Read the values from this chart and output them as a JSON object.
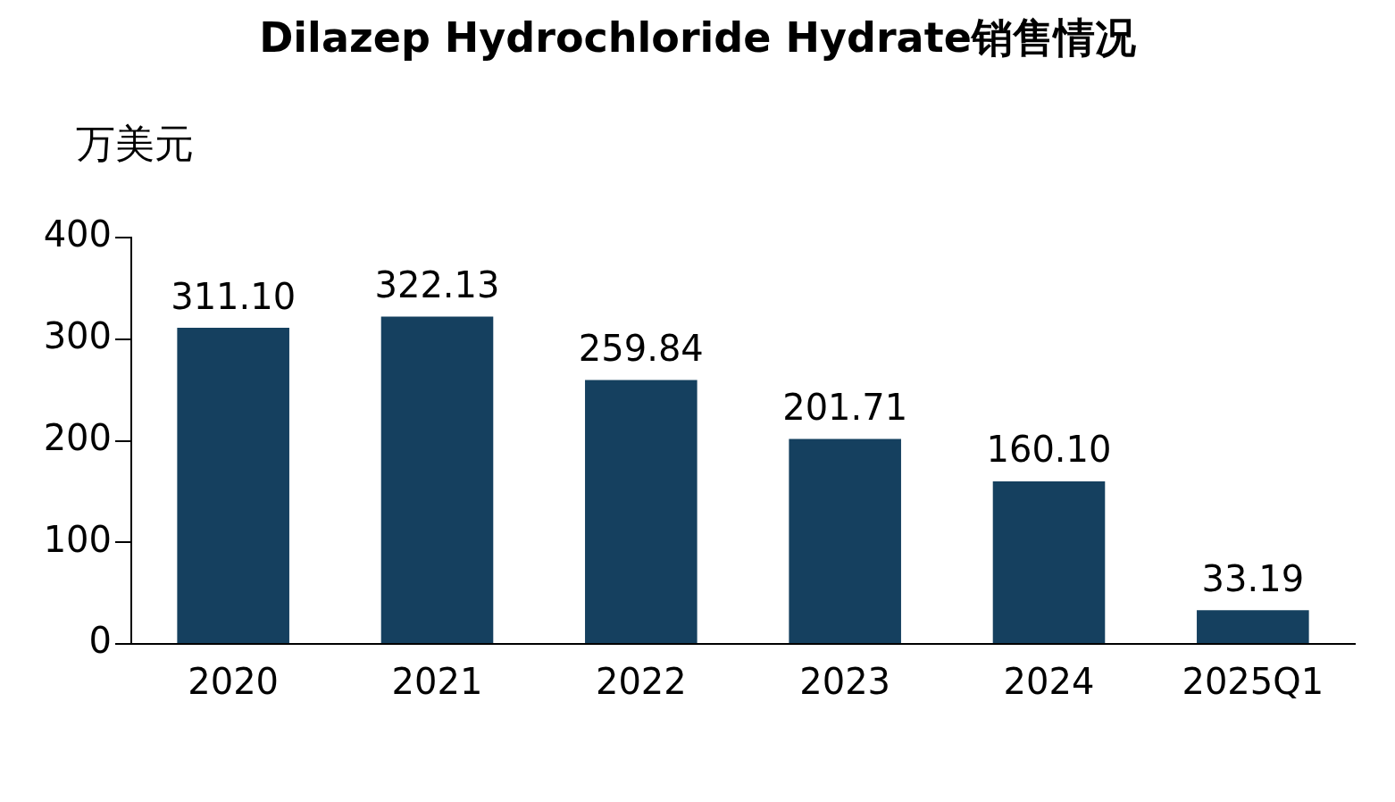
{
  "chart_data": {
    "type": "bar",
    "title": "Dilazep Hydrochloride Hydrate销售情况",
    "ylabel": "万美元",
    "categories": [
      "2020",
      "2021",
      "2022",
      "2023",
      "2024",
      "2025Q1"
    ],
    "values": [
      311.1,
      322.13,
      259.84,
      201.71,
      160.1,
      33.19
    ],
    "value_labels": [
      "311.10",
      "322.13",
      "259.84",
      "201.71",
      "160.10",
      "33.19"
    ],
    "color": "#15405f",
    "ylim": [
      0,
      400
    ],
    "yticks": [
      0,
      100,
      200,
      300,
      400
    ],
    "grid": false,
    "legend": false
  }
}
